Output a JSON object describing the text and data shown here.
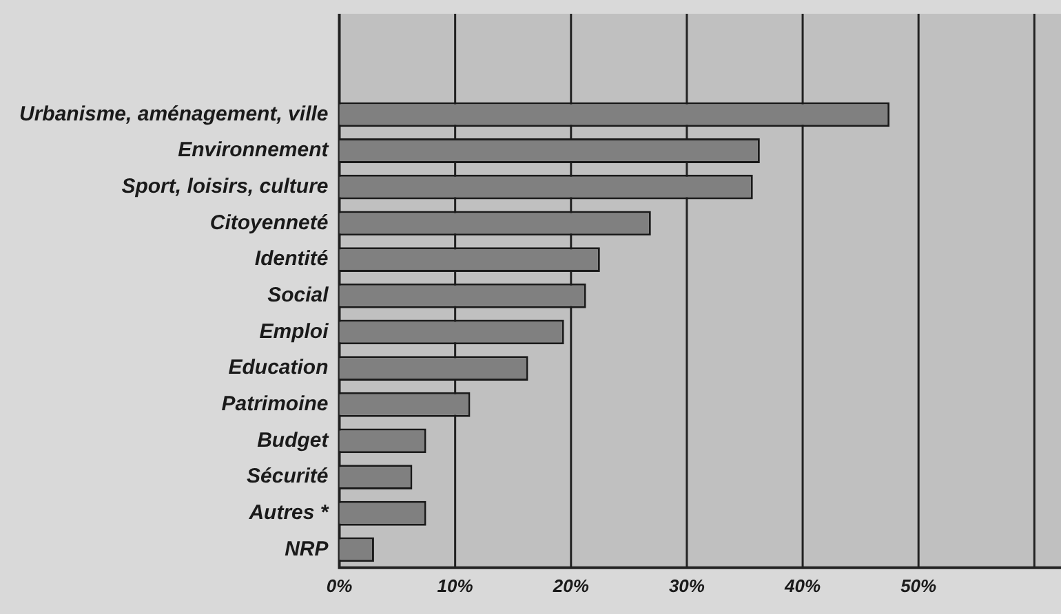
{
  "chart_data": {
    "type": "bar",
    "orientation": "horizontal",
    "categories": [
      "Urbanisme, aménagement, ville",
      "Environnement",
      "Sport, loisirs, culture",
      "Citoyenneté",
      "Identité",
      "Social",
      "Emploi",
      "Education",
      "Patrimoine",
      "Budget",
      "Sécurité",
      "Autres *",
      "NRP"
    ],
    "values": [
      47.5,
      36.3,
      35.7,
      26.9,
      22.5,
      21.3,
      19.4,
      16.3,
      11.3,
      7.5,
      6.3,
      7.5,
      3.0
    ],
    "color": "#808080",
    "xlim": [
      0,
      62.3
    ],
    "xticks": [
      {
        "value": 0,
        "label": "0%"
      },
      {
        "value": 10,
        "label": "10%"
      },
      {
        "value": 20,
        "label": "20%"
      },
      {
        "value": 30,
        "label": "30%"
      },
      {
        "value": 40,
        "label": "40%"
      },
      {
        "value": 50,
        "label": "50%"
      },
      {
        "value": 60,
        "label": null
      }
    ],
    "grid": "x",
    "legend": false
  }
}
